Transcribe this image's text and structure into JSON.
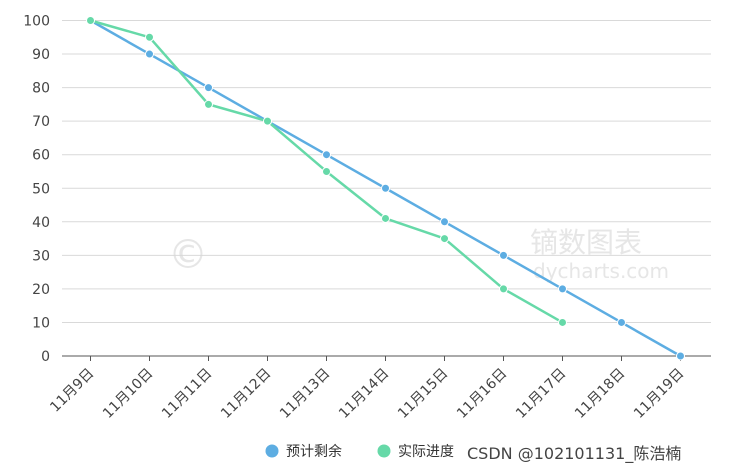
{
  "chart_data": {
    "type": "line",
    "categories": [
      "11月9日",
      "11月10日",
      "11月11日",
      "11月12日",
      "11月13日",
      "11月14日",
      "11月15日",
      "11月16日",
      "11月17日",
      "11月18日",
      "11月19日"
    ],
    "ylim": [
      0,
      100
    ],
    "yticks": [
      0,
      10,
      20,
      30,
      40,
      50,
      60,
      70,
      80,
      90,
      100
    ],
    "grid": true,
    "legend_position": "bottom-right",
    "series": [
      {
        "name": "预计剩余",
        "color": "#5dade2",
        "values": [
          100,
          90,
          80,
          70,
          60,
          50,
          40,
          30,
          20,
          10,
          0
        ]
      },
      {
        "name": "实际进度",
        "color": "#66d9a8",
        "values": [
          100,
          95,
          75,
          70,
          55,
          41,
          35,
          20,
          10,
          null,
          null
        ]
      }
    ]
  },
  "watermark": {
    "brand_cn": "镝数图表",
    "brand_url": "dycharts.com",
    "symbol": "©",
    "credit": "CSDN @102101131_陈浩楠"
  }
}
